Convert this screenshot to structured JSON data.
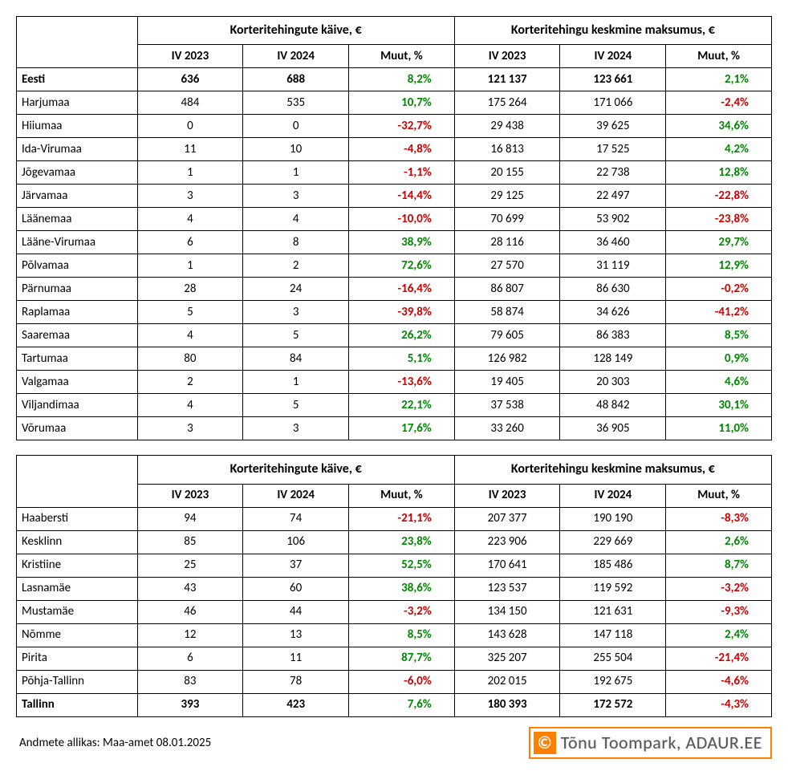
{
  "colors": {
    "positive": "#008800",
    "negative": "#cc0000",
    "border": "#000000",
    "badge_border": "#ff7f00",
    "badge_text": "#555555",
    "background": "#ffffff"
  },
  "headers": {
    "group1": "Korteritehingute käive, €",
    "group2": "Korteritehingu keskmine maksumus, €",
    "col1": "IV 2023",
    "col2": "IV 2024",
    "col3": "Muut, %"
  },
  "table1": {
    "rows": [
      {
        "name": "Eesti",
        "bold": true,
        "v1": "636",
        "v2": "688",
        "p1": "8,2%",
        "p1s": 1,
        "a1": "121 137",
        "a2": "123 661",
        "p2": "2,1%",
        "p2s": 1
      },
      {
        "name": "Harjumaa",
        "bold": false,
        "v1": "484",
        "v2": "535",
        "p1": "10,7%",
        "p1s": 1,
        "a1": "175 264",
        "a2": "171 066",
        "p2": "-2,4%",
        "p2s": -1
      },
      {
        "name": "Hiiumaa",
        "bold": false,
        "v1": "0",
        "v2": "0",
        "p1": "-32,7%",
        "p1s": -1,
        "a1": "29 438",
        "a2": "39 625",
        "p2": "34,6%",
        "p2s": 1
      },
      {
        "name": "Ida-Virumaa",
        "bold": false,
        "v1": "11",
        "v2": "10",
        "p1": "-4,8%",
        "p1s": -1,
        "a1": "16 813",
        "a2": "17 525",
        "p2": "4,2%",
        "p2s": 1
      },
      {
        "name": "Jõgevamaa",
        "bold": false,
        "v1": "1",
        "v2": "1",
        "p1": "-1,1%",
        "p1s": -1,
        "a1": "20 155",
        "a2": "22 738",
        "p2": "12,8%",
        "p2s": 1
      },
      {
        "name": "Järvamaa",
        "bold": false,
        "v1": "3",
        "v2": "3",
        "p1": "-14,4%",
        "p1s": -1,
        "a1": "29 125",
        "a2": "22 497",
        "p2": "-22,8%",
        "p2s": -1
      },
      {
        "name": "Läänemaa",
        "bold": false,
        "v1": "4",
        "v2": "4",
        "p1": "-10,0%",
        "p1s": -1,
        "a1": "70 699",
        "a2": "53 902",
        "p2": "-23,8%",
        "p2s": -1
      },
      {
        "name": "Lääne-Virumaa",
        "bold": false,
        "v1": "6",
        "v2": "8",
        "p1": "38,9%",
        "p1s": 1,
        "a1": "28 116",
        "a2": "36 460",
        "p2": "29,7%",
        "p2s": 1
      },
      {
        "name": "Põlvamaa",
        "bold": false,
        "v1": "1",
        "v2": "2",
        "p1": "72,6%",
        "p1s": 1,
        "a1": "27 570",
        "a2": "31 119",
        "p2": "12,9%",
        "p2s": 1
      },
      {
        "name": "Pärnumaa",
        "bold": false,
        "v1": "28",
        "v2": "24",
        "p1": "-16,4%",
        "p1s": -1,
        "a1": "86 807",
        "a2": "86 630",
        "p2": "-0,2%",
        "p2s": -1
      },
      {
        "name": "Raplamaa",
        "bold": false,
        "v1": "5",
        "v2": "3",
        "p1": "-39,8%",
        "p1s": -1,
        "a1": "58 874",
        "a2": "34 626",
        "p2": "-41,2%",
        "p2s": -1
      },
      {
        "name": "Saaremaa",
        "bold": false,
        "v1": "4",
        "v2": "5",
        "p1": "26,2%",
        "p1s": 1,
        "a1": "79 605",
        "a2": "86 383",
        "p2": "8,5%",
        "p2s": 1
      },
      {
        "name": "Tartumaa",
        "bold": false,
        "v1": "80",
        "v2": "84",
        "p1": "5,1%",
        "p1s": 1,
        "a1": "126 982",
        "a2": "128 149",
        "p2": "0,9%",
        "p2s": 1
      },
      {
        "name": "Valgamaa",
        "bold": false,
        "v1": "2",
        "v2": "1",
        "p1": "-13,6%",
        "p1s": -1,
        "a1": "19 405",
        "a2": "20 303",
        "p2": "4,6%",
        "p2s": 1
      },
      {
        "name": "Viljandimaa",
        "bold": false,
        "v1": "4",
        "v2": "5",
        "p1": "22,1%",
        "p1s": 1,
        "a1": "37 538",
        "a2": "48 842",
        "p2": "30,1%",
        "p2s": 1
      },
      {
        "name": "Võrumaa",
        "bold": false,
        "v1": "3",
        "v2": "3",
        "p1": "17,6%",
        "p1s": 1,
        "a1": "33 260",
        "a2": "36 905",
        "p2": "11,0%",
        "p2s": 1
      }
    ]
  },
  "table2": {
    "rows": [
      {
        "name": "Haabersti",
        "bold": false,
        "v1": "94",
        "v2": "74",
        "p1": "-21,1%",
        "p1s": -1,
        "a1": "207 377",
        "a2": "190 190",
        "p2": "-8,3%",
        "p2s": -1
      },
      {
        "name": "Kesklinn",
        "bold": false,
        "v1": "85",
        "v2": "106",
        "p1": "23,8%",
        "p1s": 1,
        "a1": "223 906",
        "a2": "229 669",
        "p2": "2,6%",
        "p2s": 1
      },
      {
        "name": "Kristiine",
        "bold": false,
        "v1": "25",
        "v2": "37",
        "p1": "52,5%",
        "p1s": 1,
        "a1": "170 641",
        "a2": "185 486",
        "p2": "8,7%",
        "p2s": 1
      },
      {
        "name": "Lasnamäe",
        "bold": false,
        "v1": "43",
        "v2": "60",
        "p1": "38,6%",
        "p1s": 1,
        "a1": "123 537",
        "a2": "119 592",
        "p2": "-3,2%",
        "p2s": -1
      },
      {
        "name": "Mustamäe",
        "bold": false,
        "v1": "46",
        "v2": "44",
        "p1": "-3,2%",
        "p1s": -1,
        "a1": "134 150",
        "a2": "121 631",
        "p2": "-9,3%",
        "p2s": -1
      },
      {
        "name": "Nõmme",
        "bold": false,
        "v1": "12",
        "v2": "13",
        "p1": "8,5%",
        "p1s": 1,
        "a1": "143 628",
        "a2": "147 118",
        "p2": "2,4%",
        "p2s": 1
      },
      {
        "name": "Pirita",
        "bold": false,
        "v1": "6",
        "v2": "11",
        "p1": "87,7%",
        "p1s": 1,
        "a1": "325 207",
        "a2": "255 504",
        "p2": "-21,4%",
        "p2s": -1
      },
      {
        "name": "Põhja-Tallinn",
        "bold": false,
        "v1": "83",
        "v2": "78",
        "p1": "-6,0%",
        "p1s": -1,
        "a1": "202 015",
        "a2": "192 675",
        "p2": "-4,6%",
        "p2s": -1
      },
      {
        "name": "Tallinn",
        "bold": true,
        "v1": "393",
        "v2": "423",
        "p1": "7,6%",
        "p1s": 1,
        "a1": "180 393",
        "a2": "172 572",
        "p2": "-4,3%",
        "p2s": -1
      }
    ]
  },
  "source": "Andmete allikas: Maa-amet 08.01.2025",
  "badge": {
    "copyright": "©",
    "text": "Tõnu Toompark, ADAUR.EE"
  }
}
